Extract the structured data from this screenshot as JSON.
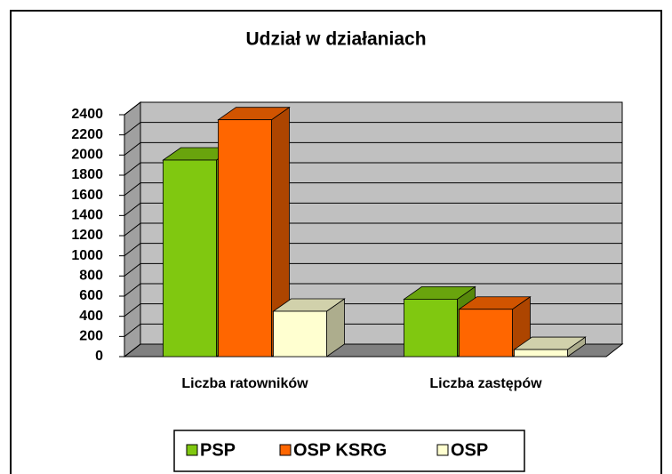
{
  "chart_data": {
    "type": "bar3d",
    "title": "Udział w działaniach",
    "categories": [
      "Liczba ratowników",
      "Liczba zastępów"
    ],
    "series": [
      {
        "name": "PSP",
        "color": "#80c810",
        "values": [
          1950,
          570
        ]
      },
      {
        "name": "OSP KSRG",
        "color": "#ff6600",
        "values": [
          2350,
          470
        ]
      },
      {
        "name": "OSP",
        "color": "#ffffd0",
        "values": [
          450,
          70
        ]
      }
    ],
    "ylim": [
      0,
      2400
    ],
    "yticks": [
      0,
      200,
      400,
      600,
      800,
      1000,
      1200,
      1400,
      1600,
      1800,
      2000,
      2200,
      2400
    ],
    "grid": true,
    "legend": "bottom"
  }
}
